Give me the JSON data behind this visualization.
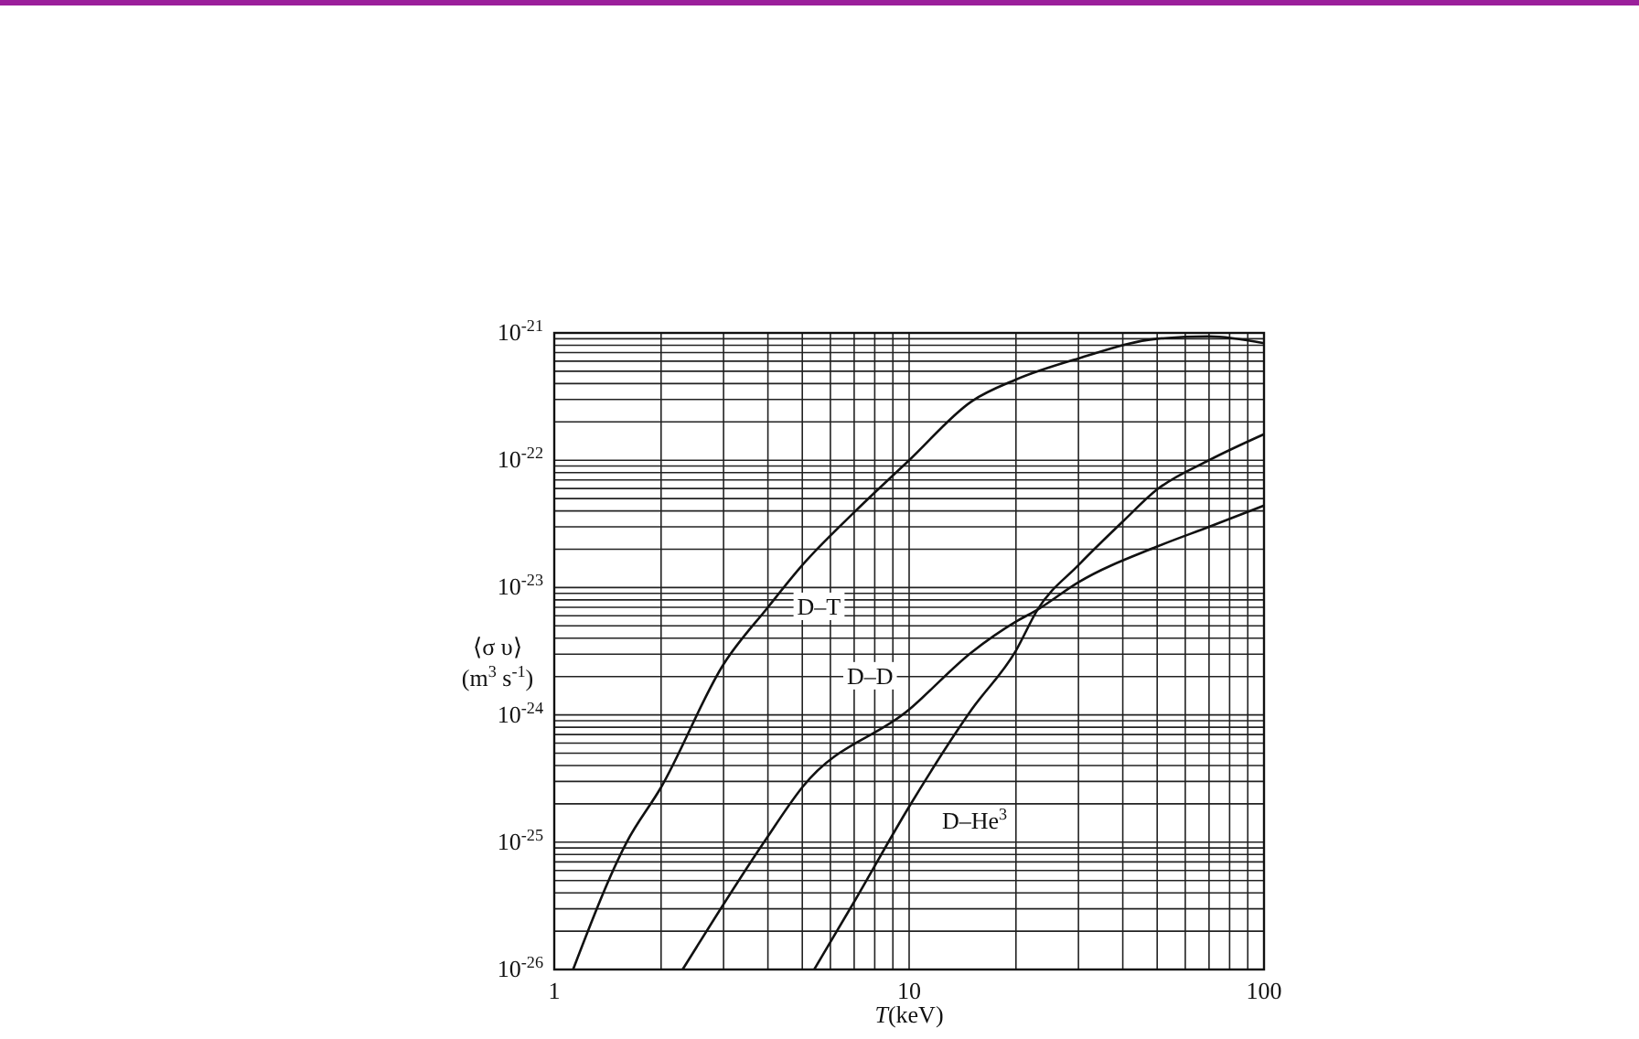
{
  "chart_data": {
    "type": "line",
    "xlabel": "T(keV)",
    "ylabel": "⟨σ υ⟩ (m$^{3}$ s$^{-1}$)",
    "log": "xy",
    "grid": true,
    "line_style": "solid",
    "marker": "none",
    "xlim": [
      1,
      100
    ],
    "ylim": [
      1e-26,
      1e-21
    ],
    "xticks": [
      1,
      {
        "value": 2,
        "label": null
      },
      {
        "value": 3,
        "label": null
      },
      {
        "value": 4,
        "label": null
      },
      {
        "value": 5,
        "label": null
      },
      {
        "value": 6,
        "label": null
      },
      {
        "value": 7,
        "label": null
      },
      {
        "value": 8,
        "label": null
      },
      {
        "value": 9,
        "label": null
      },
      10,
      {
        "value": 20,
        "label": null
      },
      {
        "value": 30,
        "label": null
      },
      {
        "value": 40,
        "label": null
      },
      {
        "value": 50,
        "label": null
      },
      {
        "value": 60,
        "label": null
      },
      {
        "value": 70,
        "label": null
      },
      {
        "value": 80,
        "label": null
      },
      {
        "value": 90,
        "label": null
      },
      100
    ],
    "yticks": [
      {
        "value": 1e-26,
        "label": "10$^{-26}$"
      },
      {
        "value": 2e-26,
        "label": null
      },
      {
        "value": 3e-26,
        "label": null
      },
      {
        "value": 4e-26,
        "label": null
      },
      {
        "value": 5e-26,
        "label": null
      },
      {
        "value": 6e-26,
        "label": null
      },
      {
        "value": 7e-26,
        "label": null
      },
      {
        "value": 8e-26,
        "label": null
      },
      {
        "value": 9e-26,
        "label": null
      },
      {
        "value": 1e-25,
        "label": "10$^{-25}$"
      },
      {
        "value": 2e-25,
        "label": null
      },
      {
        "value": 3e-25,
        "label": null
      },
      {
        "value": 4e-25,
        "label": null
      },
      {
        "value": 5e-25,
        "label": null
      },
      {
        "value": 6e-25,
        "label": null
      },
      {
        "value": 7e-25,
        "label": null
      },
      {
        "value": 8e-25,
        "label": null
      },
      {
        "value": 9e-25,
        "label": null
      },
      {
        "value": 1e-24,
        "label": "10$^{-24}$"
      },
      {
        "value": 2e-24,
        "label": null
      },
      {
        "value": 3e-24,
        "label": null
      },
      {
        "value": 4e-24,
        "label": null
      },
      {
        "value": 5e-24,
        "label": null
      },
      {
        "value": 6e-24,
        "label": null
      },
      {
        "value": 7e-24,
        "label": null
      },
      {
        "value": 8e-24,
        "label": null
      },
      {
        "value": 9e-24,
        "label": null
      },
      {
        "value": 1e-23,
        "label": "10$^{-23}$"
      },
      {
        "value": 2e-23,
        "label": null
      },
      {
        "value": 3e-23,
        "label": null
      },
      {
        "value": 4e-23,
        "label": null
      },
      {
        "value": 5e-23,
        "label": null
      },
      {
        "value": 6e-23,
        "label": null
      },
      {
        "value": 7e-23,
        "label": null
      },
      {
        "value": 8e-23,
        "label": null
      },
      {
        "value": 9e-23,
        "label": null
      },
      {
        "value": 1e-22,
        "label": "10$^{-22}$"
      },
      {
        "value": 2e-22,
        "label": null
      },
      {
        "value": 3e-22,
        "label": null
      },
      {
        "value": 4e-22,
        "label": null
      },
      {
        "value": 5e-22,
        "label": null
      },
      {
        "value": 6e-22,
        "label": null
      },
      {
        "value": 7e-22,
        "label": null
      },
      {
        "value": 8e-22,
        "label": null
      },
      {
        "value": 9e-22,
        "label": null
      },
      {
        "value": 1e-21,
        "label": "10$^{-21}$"
      }
    ],
    "series": [
      {
        "name": "D–T",
        "color": "#111111",
        "x": [
          1.13,
          1.6,
          2,
          3,
          4,
          5,
          7,
          10,
          15,
          20,
          30,
          50,
          70,
          100
        ],
        "values": [
          1e-26,
          1e-25,
          2.7e-25,
          2.5e-24,
          7e-24,
          1.5e-23,
          3.9e-23,
          1e-22,
          2.9e-22,
          4.3e-22,
          6.3e-22,
          9e-22,
          9.4e-22,
          8.3e-22
        ]
      },
      {
        "name": "D–D",
        "color": "#111111",
        "x": [
          2.3,
          3.9,
          5,
          10,
          15,
          20,
          23,
          30,
          50,
          70,
          100
        ],
        "values": [
          1e-26,
          1e-25,
          2.7e-25,
          1.1e-24,
          3.1e-24,
          5.4e-24,
          6.7e-24,
          1.1e-23,
          2.1e-23,
          3e-23,
          4.4e-23
        ]
      },
      {
        "name": "D–He$^{3}$",
        "color": "#111111",
        "x": [
          5.4,
          7,
          10,
          15,
          20,
          23,
          30,
          40,
          50,
          70,
          100
        ],
        "values": [
          1e-26,
          3.4e-26,
          1.9e-25,
          1.1e-24,
          3.2e-24,
          6.7e-24,
          1.5e-23,
          3.3e-23,
          5.9e-23,
          1e-22,
          1.6e-22
        ]
      }
    ]
  }
}
